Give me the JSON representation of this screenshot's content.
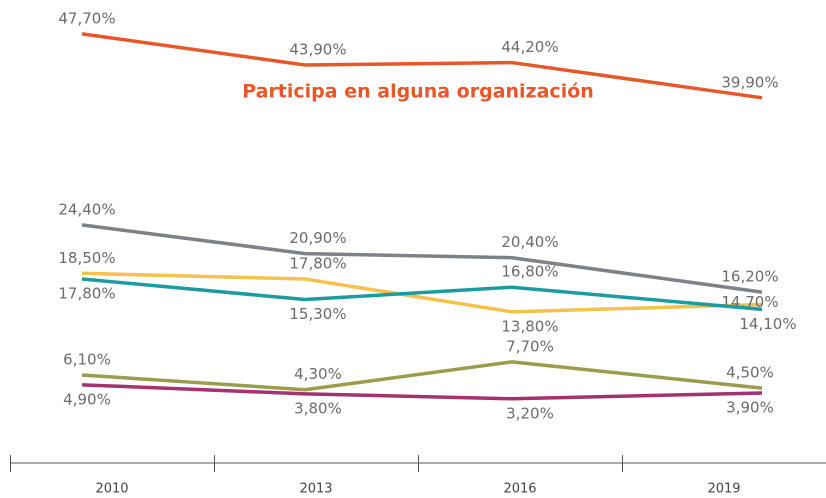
{
  "chart_data": {
    "type": "line",
    "categories": [
      "2010",
      "2013",
      "2016",
      "2019"
    ],
    "series": [
      {
        "name": "Participa en alguna organización",
        "color": "#e8572a",
        "values": [
          47.7,
          43.9,
          44.2,
          39.9
        ],
        "value_labels": [
          "47,70%",
          "43,90%",
          "44,20%",
          "39,90%"
        ]
      },
      {
        "color": "#7e8186",
        "values": [
          24.4,
          20.9,
          20.4,
          16.2
        ],
        "value_labels": [
          "24,40%",
          "20,90%",
          "20,40%",
          "16,20%"
        ]
      },
      {
        "color": "#f4c24c",
        "values": [
          18.5,
          17.8,
          13.8,
          14.7
        ],
        "value_labels": [
          "18,50%",
          "17,80%",
          "13,80%",
          "14,70%"
        ]
      },
      {
        "color": "#1a9ca1",
        "values": [
          17.8,
          15.3,
          16.8,
          14.1
        ],
        "value_labels": [
          "17,80%",
          "15,30%",
          "16,80%",
          "14,10%"
        ]
      },
      {
        "color": "#9b9c4c",
        "values": [
          6.1,
          4.3,
          7.7,
          4.5
        ],
        "value_labels": [
          "6,10%",
          "4,30%",
          "7,70%",
          "4,50%"
        ]
      },
      {
        "color": "#a3326f",
        "values": [
          4.9,
          3.8,
          3.2,
          3.9
        ],
        "value_labels": [
          "4,90%",
          "3,80%",
          "3,20%",
          "3,90%"
        ]
      }
    ]
  }
}
